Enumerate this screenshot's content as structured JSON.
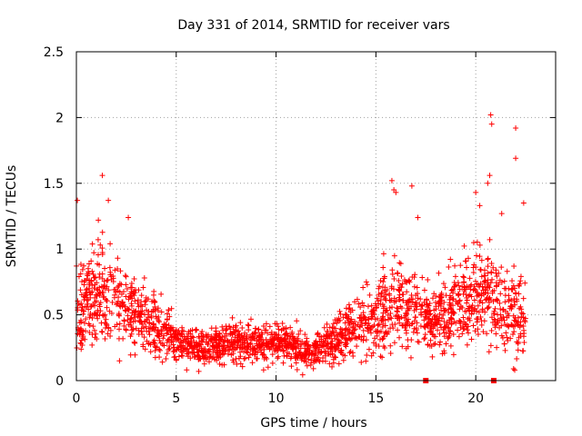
{
  "chart_data": {
    "type": "scatter",
    "title": "Day 331 of 2014, SRMTID for receiver vars",
    "xlabel": "GPS time / hours",
    "ylabel": "SRMTID / TECUs",
    "xlim": [
      0,
      24
    ],
    "ylim": [
      0,
      2.5
    ],
    "xticks": [
      0,
      5,
      10,
      15,
      20
    ],
    "yticks": [
      0,
      0.5,
      1,
      1.5,
      2,
      2.5
    ],
    "grid": true,
    "marker": "+",
    "color": "#ff0000",
    "series_name": "SRMTID",
    "profile_hours": [
      0,
      0.5,
      1,
      1.5,
      2,
      2.5,
      3,
      3.5,
      4,
      4.5,
      5,
      5.5,
      6,
      6.5,
      7,
      7.5,
      8,
      8.5,
      9,
      9.5,
      10,
      10.5,
      11,
      11.5,
      12,
      12.5,
      13,
      13.5,
      14,
      14.5,
      15,
      15.5,
      16,
      16.5,
      17,
      17.5,
      18,
      18.5,
      19,
      19.5,
      20,
      20.5,
      21,
      21.5,
      22,
      22.5
    ],
    "profile_median": [
      0.55,
      0.6,
      0.65,
      0.7,
      0.65,
      0.55,
      0.5,
      0.45,
      0.4,
      0.38,
      0.32,
      0.28,
      0.25,
      0.25,
      0.27,
      0.28,
      0.3,
      0.28,
      0.27,
      0.27,
      0.28,
      0.3,
      0.25,
      0.22,
      0.25,
      0.28,
      0.32,
      0.38,
      0.42,
      0.45,
      0.5,
      0.55,
      0.6,
      0.55,
      0.55,
      0.5,
      0.45,
      0.5,
      0.55,
      0.6,
      0.65,
      0.7,
      0.6,
      0.55,
      0.5,
      0.45
    ],
    "profile_spread": [
      0.3,
      0.3,
      0.35,
      0.35,
      0.3,
      0.3,
      0.25,
      0.2,
      0.2,
      0.18,
      0.15,
      0.12,
      0.12,
      0.12,
      0.12,
      0.13,
      0.13,
      0.13,
      0.12,
      0.12,
      0.12,
      0.13,
      0.12,
      0.11,
      0.12,
      0.13,
      0.15,
      0.18,
      0.2,
      0.22,
      0.25,
      0.28,
      0.3,
      0.3,
      0.28,
      0.25,
      0.22,
      0.25,
      0.28,
      0.3,
      0.35,
      0.35,
      0.3,
      0.3,
      0.28,
      0.25
    ],
    "outliers": [
      {
        "x": 1.3,
        "y": 1.56
      },
      {
        "x": 1.1,
        "y": 1.22
      },
      {
        "x": 1.6,
        "y": 1.37
      },
      {
        "x": 0.05,
        "y": 1.37
      },
      {
        "x": 2.6,
        "y": 1.24
      },
      {
        "x": 15.8,
        "y": 1.52
      },
      {
        "x": 15.9,
        "y": 1.45
      },
      {
        "x": 16.0,
        "y": 1.43
      },
      {
        "x": 16.8,
        "y": 1.48
      },
      {
        "x": 20.0,
        "y": 1.43
      },
      {
        "x": 20.2,
        "y": 1.33
      },
      {
        "x": 20.6,
        "y": 1.5
      },
      {
        "x": 20.7,
        "y": 1.56
      },
      {
        "x": 20.75,
        "y": 2.02
      },
      {
        "x": 20.8,
        "y": 1.95
      },
      {
        "x": 21.3,
        "y": 1.27
      },
      {
        "x": 22.0,
        "y": 1.92
      },
      {
        "x": 22.0,
        "y": 1.69
      },
      {
        "x": 22.4,
        "y": 1.35
      },
      {
        "x": 17.1,
        "y": 1.24
      }
    ],
    "gaps": [
      {
        "x": 17.5,
        "y": 0
      },
      {
        "x": 20.9,
        "y": 0
      }
    ],
    "max_time_hours": 22.5
  }
}
